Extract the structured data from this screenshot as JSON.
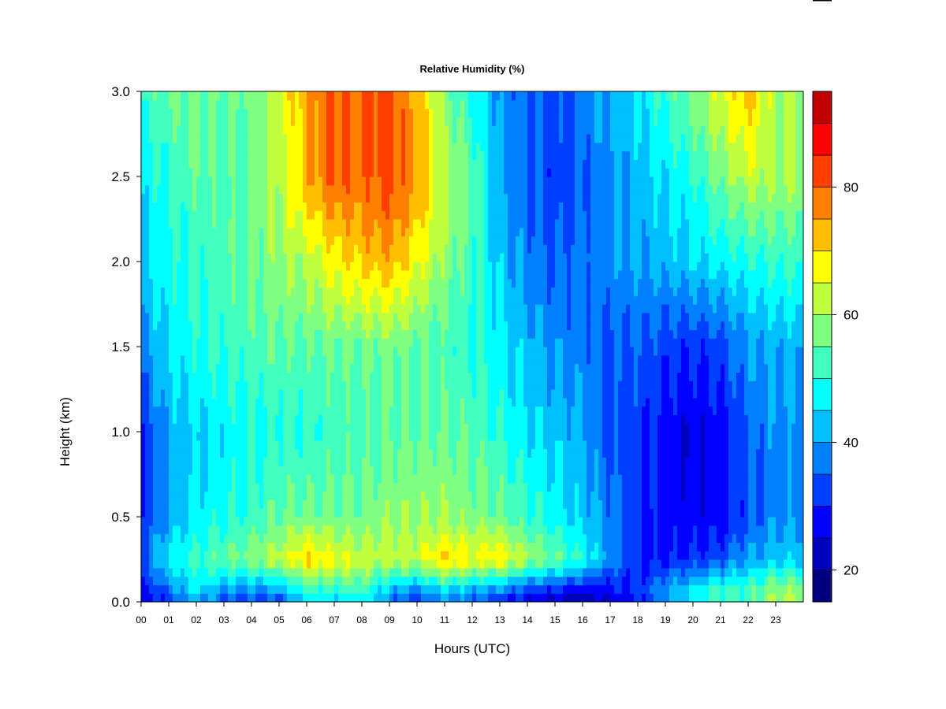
{
  "chart_data": {
    "type": "heatmap",
    "title": "Relative Humidity (%)",
    "xlabel": "Hours (UTC)",
    "ylabel": "Height (km)",
    "xlim": [
      0,
      24
    ],
    "ylim": [
      0.0,
      3.0
    ],
    "x_ticks": [
      "00",
      "01",
      "02",
      "03",
      "04",
      "05",
      "06",
      "07",
      "08",
      "09",
      "10",
      "11",
      "12",
      "13",
      "14",
      "15",
      "16",
      "17",
      "18",
      "19",
      "20",
      "21",
      "22",
      "23"
    ],
    "y_ticks": [
      "0.0",
      "0.5",
      "1.0",
      "1.5",
      "2.0",
      "2.5",
      "3.0"
    ],
    "colorbar": {
      "levels": [
        15,
        20,
        25,
        30,
        35,
        40,
        45,
        50,
        55,
        60,
        65,
        70,
        75,
        80,
        85,
        90,
        95
      ],
      "colors": [
        "#00007F",
        "#0000BF",
        "#0000FF",
        "#003FFF",
        "#007FFF",
        "#00BFFF",
        "#00FFFF",
        "#40FFBF",
        "#80FF80",
        "#BFFF40",
        "#FFFF00",
        "#FFBF00",
        "#FF7F00",
        "#FF3F00",
        "#FF0000",
        "#BF0000"
      ],
      "tick_labels": [
        "20",
        "40",
        "60",
        "80"
      ],
      "tick_values": [
        20,
        40,
        60,
        80
      ]
    },
    "heights_km": [
      0.0,
      0.05,
      0.25,
      0.5,
      1.0,
      1.5,
      2.0,
      2.5,
      3.0
    ],
    "hours": [
      0,
      1,
      2,
      3,
      4,
      5,
      6,
      7,
      8,
      9,
      10,
      11,
      12,
      13,
      14,
      15,
      16,
      17,
      18,
      19,
      20,
      21,
      22,
      23,
      24
    ],
    "values": [
      [
        25,
        30,
        38,
        32,
        30,
        28,
        45,
        42,
        45,
        36,
        30,
        40,
        35,
        30,
        25,
        24,
        22,
        25,
        28,
        38,
        45,
        50,
        52,
        60,
        60
      ],
      [
        28,
        35,
        45,
        38,
        35,
        38,
        48,
        48,
        50,
        38,
        35,
        42,
        38,
        35,
        30,
        28,
        25,
        28,
        32,
        42,
        50,
        55,
        55,
        62,
        62
      ],
      [
        35,
        48,
        52,
        55,
        58,
        62,
        70,
        65,
        62,
        62,
        62,
        70,
        66,
        68,
        60,
        55,
        50,
        40,
        30,
        30,
        32,
        35,
        42,
        45,
        45
      ],
      [
        32,
        42,
        48,
        50,
        52,
        56,
        56,
        56,
        56,
        58,
        58,
        58,
        56,
        54,
        50,
        46,
        42,
        36,
        30,
        28,
        27,
        28,
        34,
        40,
        40
      ],
      [
        30,
        42,
        45,
        48,
        50,
        52,
        52,
        54,
        54,
        56,
        56,
        56,
        54,
        50,
        45,
        42,
        40,
        32,
        30,
        26,
        24,
        26,
        34,
        38,
        38
      ],
      [
        36,
        44,
        48,
        50,
        52,
        54,
        54,
        56,
        56,
        58,
        56,
        54,
        52,
        48,
        44,
        40,
        38,
        35,
        35,
        32,
        30,
        32,
        38,
        40,
        40
      ],
      [
        44,
        48,
        50,
        52,
        54,
        58,
        60,
        66,
        70,
        72,
        66,
        58,
        52,
        44,
        38,
        36,
        38,
        40,
        42,
        44,
        46,
        48,
        50,
        52,
        52
      ],
      [
        48,
        52,
        56,
        54,
        56,
        62,
        74,
        80,
        78,
        82,
        74,
        60,
        52,
        38,
        34,
        30,
        34,
        38,
        42,
        46,
        50,
        58,
        64,
        62,
        62
      ],
      [
        52,
        56,
        58,
        56,
        58,
        66,
        76,
        82,
        80,
        84,
        74,
        58,
        50,
        38,
        34,
        32,
        36,
        40,
        44,
        50,
        56,
        64,
        72,
        60,
        60
      ]
    ]
  }
}
